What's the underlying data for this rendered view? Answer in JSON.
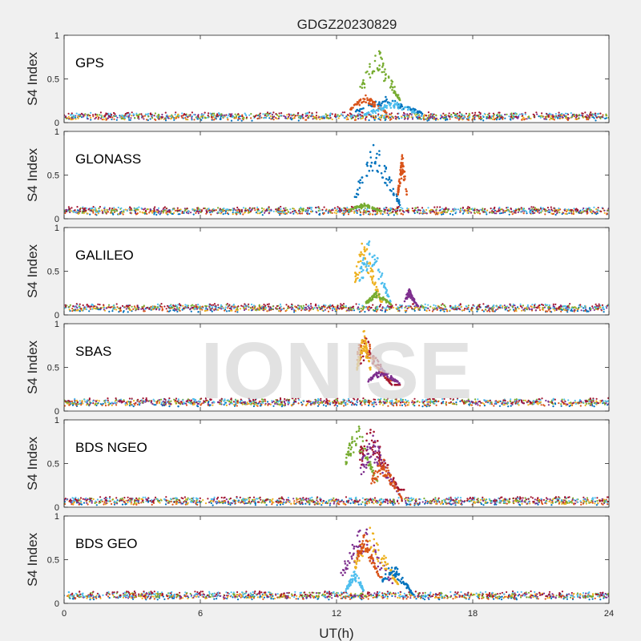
{
  "figure": {
    "title": "GDGZ20230829",
    "watermark": "IONISE",
    "xlabel": "UT(h)"
  },
  "chart_data": {
    "type": "scatter",
    "title": "GDGZ20230829",
    "xlabel": "UT(h)",
    "ylabel": "S4 Index",
    "xlim": [
      0,
      24
    ],
    "ylim": [
      0,
      1
    ],
    "x_ticks": [
      "0",
      "6",
      "12",
      "18",
      "24"
    ],
    "y_ticks": [
      "0",
      "0.5",
      "1"
    ],
    "grid": false,
    "series_colors": [
      "#0072BD",
      "#D95319",
      "#EDB120",
      "#7E2F8E",
      "#77AC30",
      "#4DBEEE",
      "#A2142F"
    ],
    "panels": [
      {
        "label": "GPS",
        "baseline": 0.07,
        "events": [
          {
            "color": 4,
            "x": [
              13.0,
              14.8
            ],
            "y": [
              0.2,
              0.88
            ],
            "peak": 13.8
          },
          {
            "color": 0,
            "x": [
              12.8,
              15.8
            ],
            "y": [
              0.08,
              0.3
            ],
            "peak": 14.2
          },
          {
            "color": 1,
            "x": [
              12.6,
              14.2
            ],
            "y": [
              0.1,
              0.32
            ],
            "peak": 13.3
          },
          {
            "color": 5,
            "x": [
              13.2,
              15.5
            ],
            "y": [
              0.08,
              0.25
            ],
            "peak": 14.5
          }
        ]
      },
      {
        "label": "GLONASS",
        "baseline": 0.09,
        "events": [
          {
            "color": 0,
            "x": [
              12.8,
              14.8
            ],
            "y": [
              0.1,
              0.9
            ],
            "peak": 13.7
          },
          {
            "color": 1,
            "x": [
              14.7,
              15.1
            ],
            "y": [
              0.2,
              0.77
            ],
            "peak": 14.9
          },
          {
            "color": 4,
            "x": [
              12.6,
              14.0
            ],
            "y": [
              0.08,
              0.18
            ],
            "peak": 13.2
          }
        ]
      },
      {
        "label": "GALILEO",
        "baseline": 0.08,
        "events": [
          {
            "color": 2,
            "x": [
              12.8,
              14.0
            ],
            "y": [
              0.15,
              0.9
            ],
            "peak": 13.2
          },
          {
            "color": 5,
            "x": [
              13.0,
              14.4
            ],
            "y": [
              0.15,
              0.95
            ],
            "peak": 13.5
          },
          {
            "color": 4,
            "x": [
              13.3,
              14.4
            ],
            "y": [
              0.1,
              0.28
            ],
            "peak": 13.8
          },
          {
            "color": 3,
            "x": [
              15.0,
              15.6
            ],
            "y": [
              0.1,
              0.3
            ],
            "peak": 15.2
          }
        ]
      },
      {
        "label": "SBAS",
        "baseline": 0.1,
        "events": [
          {
            "color": 1,
            "x": [
              12.9,
              14.6
            ],
            "y": [
              0.35,
              0.9
            ],
            "peak": 13.2
          },
          {
            "color": 6,
            "x": [
              13.0,
              14.8
            ],
            "y": [
              0.3,
              0.85
            ],
            "peak": 13.3
          },
          {
            "color": 3,
            "x": [
              13.4,
              14.8
            ],
            "y": [
              0.3,
              0.5
            ],
            "peak": 14.0
          },
          {
            "color": 2,
            "x": [
              12.9,
              13.5
            ],
            "y": [
              0.4,
              0.95
            ],
            "peak": 13.2
          }
        ]
      },
      {
        "label": "BDS NGEO",
        "baseline": 0.07,
        "events": [
          {
            "color": 4,
            "x": [
              12.4,
              13.8
            ],
            "y": [
              0.3,
              1.0
            ],
            "peak": 12.9
          },
          {
            "color": 6,
            "x": [
              13.0,
              15.0
            ],
            "y": [
              0.2,
              0.95
            ],
            "peak": 13.5
          },
          {
            "color": 3,
            "x": [
              13.0,
              14.8
            ],
            "y": [
              0.15,
              0.85
            ],
            "peak": 13.6
          },
          {
            "color": 1,
            "x": [
              13.5,
              14.9
            ],
            "y": [
              0.1,
              0.6
            ],
            "peak": 14.0
          }
        ]
      },
      {
        "label": "BDS GEO",
        "baseline": 0.09,
        "events": [
          {
            "color": 3,
            "x": [
              12.2,
              14.5
            ],
            "y": [
              0.15,
              0.95
            ],
            "peak": 13.2
          },
          {
            "color": 2,
            "x": [
              12.8,
              14.8
            ],
            "y": [
              0.2,
              0.9
            ],
            "peak": 13.5
          },
          {
            "color": 1,
            "x": [
              12.9,
              14.0
            ],
            "y": [
              0.3,
              0.85
            ],
            "peak": 13.2
          },
          {
            "color": 0,
            "x": [
              14.0,
              15.4
            ],
            "y": [
              0.1,
              0.5
            ],
            "peak": 14.5
          },
          {
            "color": 5,
            "x": [
              12.4,
              13.2
            ],
            "y": [
              0.1,
              0.4
            ],
            "peak": 12.8
          }
        ]
      }
    ]
  }
}
